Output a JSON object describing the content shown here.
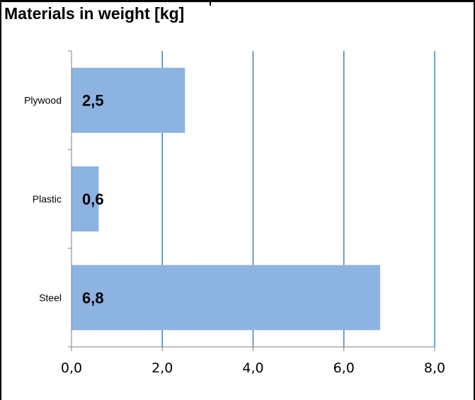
{
  "chart_data": {
    "type": "bar",
    "orientation": "horizontal",
    "title": "Materials in weight [kg]",
    "categories": [
      "Plywood",
      "Plastic",
      "Steel"
    ],
    "values": [
      2.5,
      0.6,
      6.8
    ],
    "data_labels": [
      "2,5",
      "0,6",
      "6,8"
    ],
    "xlim": [
      0,
      8
    ],
    "xticks": [
      0,
      2,
      4,
      6,
      8
    ],
    "xtick_labels": [
      "0,0",
      "2,0",
      "4,0",
      "6,0",
      "8,0"
    ],
    "xlabel": "",
    "ylabel": "",
    "grid": "vertical",
    "legend": "none",
    "colors": {
      "bar": "#8db3e2",
      "gridline": "#4a7ebb",
      "axis": "#808080",
      "text": "#000000"
    }
  }
}
